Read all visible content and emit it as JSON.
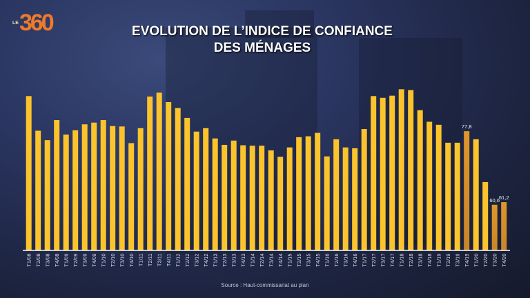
{
  "brand": {
    "prefix": "LE",
    "name": "360"
  },
  "chart_data": {
    "type": "bar",
    "title": "EVOLUTION DE L’INDICE DE CONFIANCE DES MÉNAGES",
    "title_lines": [
      "EVOLUTION DE L’INDICE DE CONFIANCE",
      "DES MÉNAGES"
    ],
    "source": "Source : Haut-commissariat au plan",
    "xlabel": "",
    "ylabel": "",
    "ylim": [
      50,
      90
    ],
    "grid": false,
    "categories": [
      "T1/08",
      "T2/08",
      "T3/08",
      "T4/08",
      "T1/09",
      "T2/09",
      "T3/09",
      "T4/09",
      "T1/10",
      "T2/10",
      "T3/10",
      "T4/10",
      "T1/11",
      "T2/11",
      "T3/11",
      "T4/11",
      "T1/12",
      "T2/12",
      "T3/12",
      "T4/12",
      "T1/13",
      "T2/13",
      "T3/13",
      "T4/13",
      "T1/14",
      "T2/14",
      "T3/14",
      "T4/14",
      "T1/15",
      "T2/15",
      "T3/15",
      "T4/15",
      "T1/16",
      "T2/16",
      "T3/16",
      "T4/16",
      "T1/17",
      "T2/17",
      "T3/17",
      "T4/17",
      "T1/18",
      "T2/18",
      "T3/18",
      "T4/18",
      "T1/19",
      "T2/19",
      "T3/19",
      "T4/19",
      "T1/20",
      "T2/20",
      "T3/20",
      "T4/20"
    ],
    "values": [
      86.0,
      77.9,
      75.7,
      80.4,
      77.0,
      78.0,
      79.4,
      79.8,
      80.4,
      79.0,
      78.9,
      75.0,
      78.5,
      85.9,
      86.8,
      84.6,
      83.2,
      80.9,
      77.7,
      78.5,
      76.1,
      74.6,
      75.6,
      74.5,
      74.4,
      74.4,
      73.3,
      71.8,
      74.0,
      76.4,
      76.6,
      77.4,
      71.9,
      75.9,
      74.0,
      73.8,
      78.3,
      86.0,
      85.6,
      86.1,
      87.6,
      87.4,
      82.7,
      80.0,
      79.3,
      75.1,
      75.1,
      77.8,
      75.9,
      65.9,
      60.6,
      61.2
    ],
    "data_labels": {
      "T4/19": "77,8",
      "T3/20": "60,6",
      "T4/20": "61,2"
    },
    "highlighted": [
      "T4/19",
      "T3/20",
      "T4/20"
    ],
    "colors": {
      "bar": "#fcc42c",
      "highlight": "#e0962a",
      "axis": "#ffffff",
      "label": "#d8dbe4"
    }
  }
}
